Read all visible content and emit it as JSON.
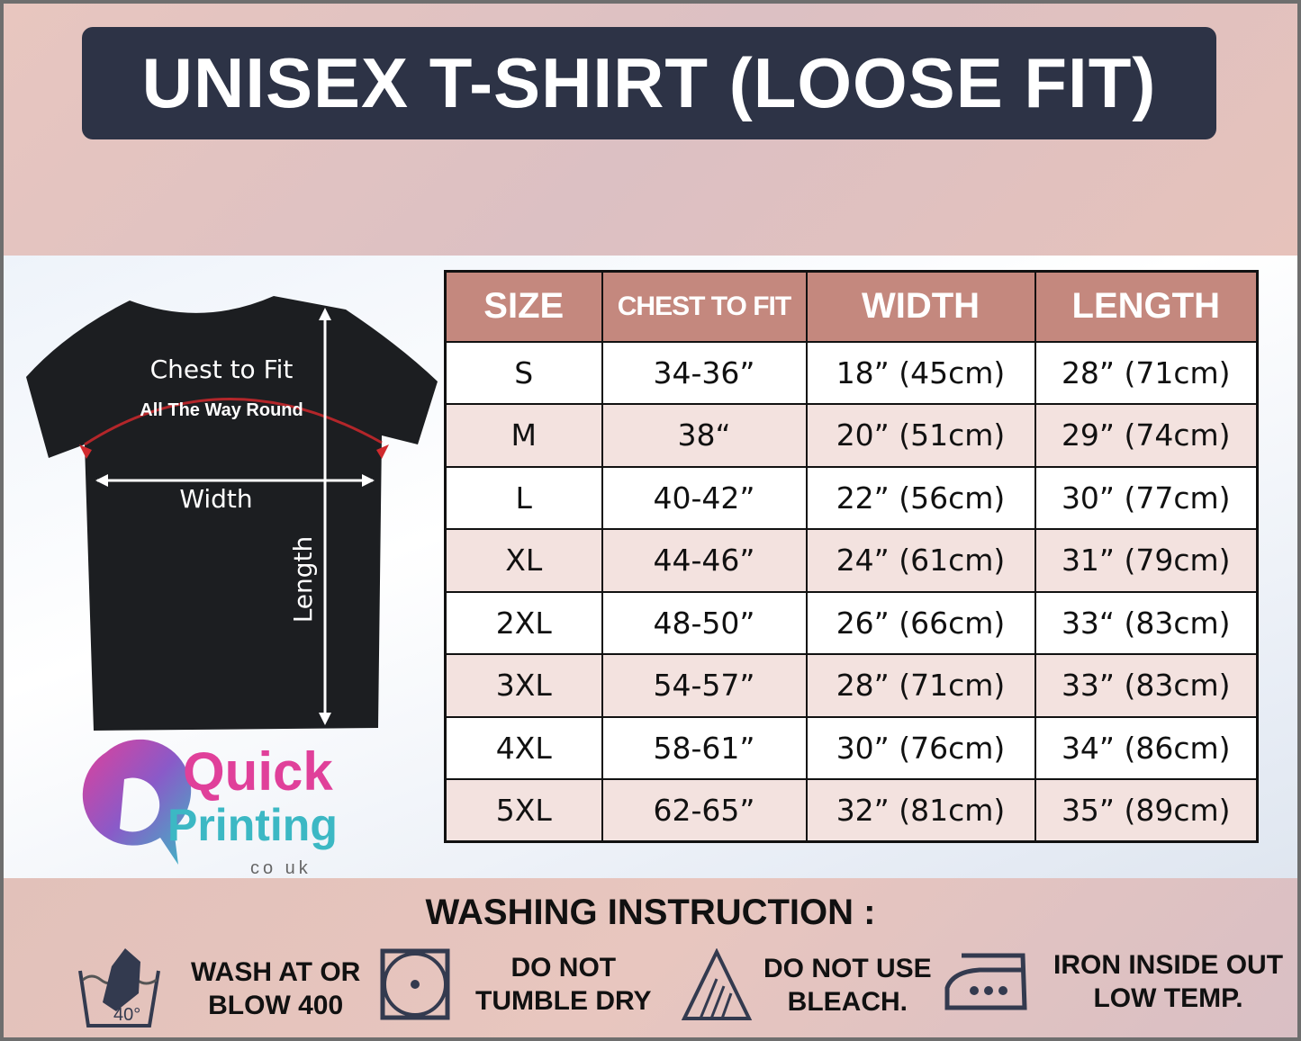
{
  "title": "UNISEX T-SHIRT (LOOSE FIT)",
  "diagram": {
    "chest_label": "Chest to Fit",
    "chest_sub": "All The Way Round",
    "width_label": "Width",
    "length_label": "Length"
  },
  "logo": {
    "line1": "Quick",
    "line2": "Printing",
    "line3": "co uk",
    "colors": {
      "quick": "#e0409a",
      "printing": "#3cb8c4"
    }
  },
  "table": {
    "headers": [
      "SIZE",
      "CHEST TO FIT",
      "WIDTH",
      "LENGTH"
    ],
    "header_color": "#c4887e",
    "rows": [
      [
        "S",
        "34-36”",
        "18” (45cm)",
        "28” (71cm)"
      ],
      [
        "M",
        "38“",
        "20” (51cm)",
        "29” (74cm)"
      ],
      [
        "L",
        "40-42”",
        "22” (56cm)",
        "30” (77cm)"
      ],
      [
        "XL",
        "44-46”",
        "24” (61cm)",
        "31” (79cm)"
      ],
      [
        "2XL",
        "48-50”",
        "26” (66cm)",
        "33“ (83cm)"
      ],
      [
        "3XL",
        "54-57”",
        "28” (71cm)",
        "33” (83cm)"
      ],
      [
        "4XL",
        "58-61”",
        "30” (76cm)",
        "34” (86cm)"
      ],
      [
        "5XL",
        "62-65”",
        "32” (81cm)",
        "35” (89cm)"
      ]
    ]
  },
  "washing": {
    "title": "WASHING INSTRUCTION :",
    "items": [
      {
        "icon": "hand-wash-40-icon",
        "label": "WASH AT OR\nBLOW 400",
        "temp": "40°"
      },
      {
        "icon": "no-tumble-dry-icon",
        "label": "DO NOT\nTUMBLE DRY"
      },
      {
        "icon": "no-bleach-icon",
        "label": "DO NOT USE\nBLEACH."
      },
      {
        "icon": "iron-icon",
        "label": "IRON INSIDE OUT\nLOW TEMP."
      }
    ]
  },
  "colors": {
    "banner": "#2d3346",
    "icons": "#333a4f"
  }
}
